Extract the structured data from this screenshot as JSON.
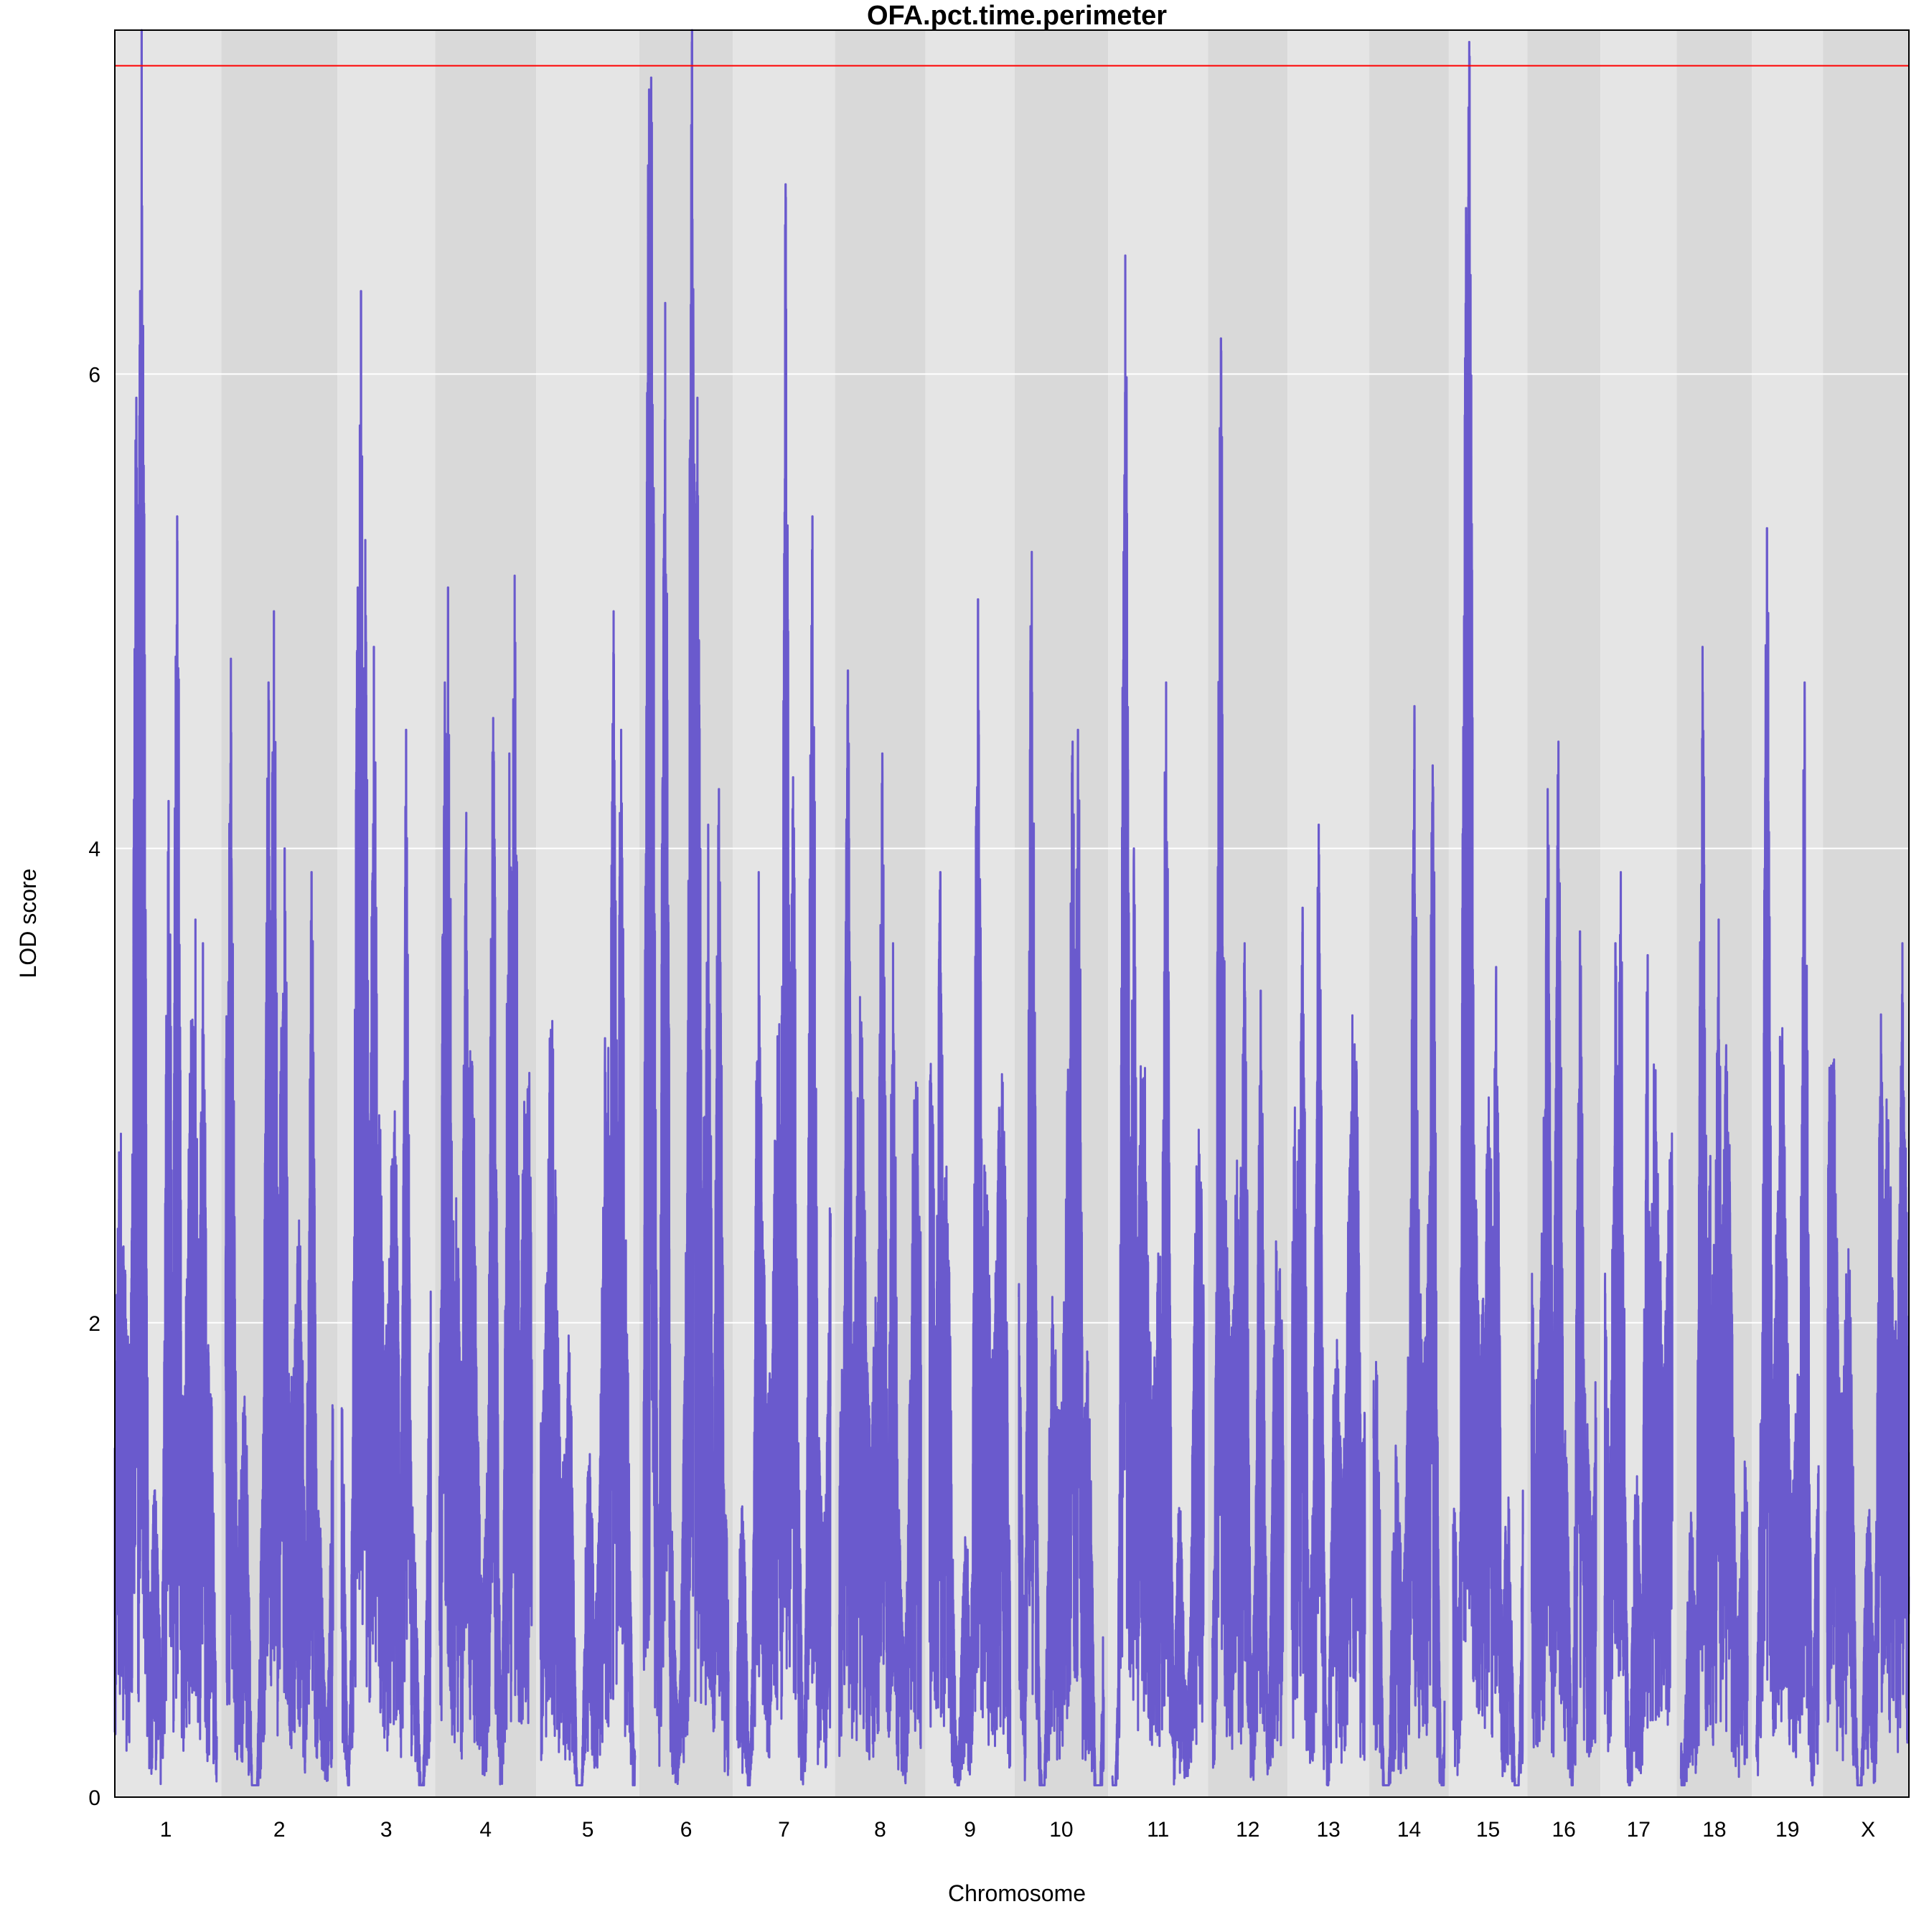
{
  "chart_data": {
    "type": "line",
    "title": "OFA.pct.time.perimeter",
    "xlabel": "Chromosome",
    "ylabel": "LOD score",
    "ylim": [
      0,
      7.45
    ],
    "yticks": [
      0,
      2,
      4,
      6
    ],
    "threshold": 7.3,
    "colors": {
      "line": "#6A5ACD",
      "threshold": "#FF0000",
      "band_light": "#E5E5E5",
      "band_dark": "#D9D9D9",
      "grid": "#FFFFFF"
    },
    "chromosomes": [
      "1",
      "2",
      "3",
      "4",
      "5",
      "6",
      "7",
      "8",
      "9",
      "10",
      "11",
      "12",
      "13",
      "14",
      "15",
      "16",
      "17",
      "18",
      "19",
      "X"
    ],
    "chromosome_lengths_cM": [
      95,
      100,
      83,
      86,
      88,
      79,
      87,
      76,
      75,
      79,
      85,
      66,
      68,
      66,
      65,
      60,
      63,
      62,
      58,
      76
    ],
    "series": [
      {
        "peaks": [
          [
            [
              20,
              5.9
            ],
            [
              25,
              7.45
            ],
            [
              50,
              4.2
            ],
            [
              58,
              5.4
            ],
            [
              75,
              3.7
            ],
            [
              82,
              3.6
            ]
          ],
          [
            [
              5,
              4.8
            ],
            [
              40,
              4.7
            ],
            [
              45,
              5.0
            ],
            [
              55,
              4.0
            ],
            [
              80,
              3.9
            ]
          ],
          [
            [
              15,
              5.1
            ],
            [
              18,
              6.35
            ],
            [
              22,
              5.3
            ],
            [
              30,
              4.85
            ],
            [
              60,
              4.5
            ]
          ],
          [
            [
              5,
              4.7
            ],
            [
              8,
              5.1
            ],
            [
              25,
              4.15
            ],
            [
              50,
              4.55
            ],
            [
              65,
              4.4
            ],
            [
              70,
              5.15
            ]
          ],
          [
            [
              60,
              3.2
            ],
            [
              68,
              5.0
            ],
            [
              75,
              4.5
            ]
          ],
          [
            [
              5,
              7.2
            ],
            [
              7,
              7.25
            ],
            [
              20,
              6.3
            ],
            [
              45,
              7.45
            ],
            [
              50,
              5.9
            ],
            [
              60,
              4.1
            ],
            [
              70,
              4.25
            ]
          ],
          [
            [
              20,
              3.9
            ],
            [
              45,
              6.8
            ],
            [
              52,
              4.3
            ],
            [
              70,
              5.4
            ]
          ],
          [
            [
              8,
              4.75
            ],
            [
              40,
              4.4
            ],
            [
              50,
              3.6
            ]
          ],
          [
            [
              10,
              3.9
            ],
            [
              45,
              5.05
            ]
          ],
          [
            [
              12,
              5.25
            ],
            [
              50,
              4.45
            ],
            [
              55,
              4.5
            ]
          ],
          [
            [
              12,
              6.5
            ],
            [
              20,
              4.0
            ],
            [
              50,
              4.7
            ]
          ],
          [
            [
              8,
              6.15
            ],
            [
              30,
              3.6
            ],
            [
              45,
              3.4
            ]
          ],
          [
            [
              10,
              3.75
            ],
            [
              25,
              4.1
            ],
            [
              60,
              3.1
            ]
          ],
          [
            [
              38,
              4.6
            ],
            [
              55,
              4.35
            ]
          ],
          [
            [
              12,
              6.7
            ],
            [
              15,
              7.4
            ],
            [
              40,
              3.5
            ]
          ],
          [
            [
              15,
              4.25
            ],
            [
              25,
              4.45
            ],
            [
              45,
              3.65
            ]
          ],
          [
            [
              10,
              3.6
            ],
            [
              15,
              3.9
            ],
            [
              40,
              3.55
            ]
          ],
          [
            [
              20,
              4.85
            ],
            [
              35,
              3.7
            ]
          ],
          [
            [
              10,
              5.35
            ],
            [
              45,
              4.7
            ]
          ],
          [
            [
              50,
              3.3
            ],
            [
              70,
              3.6
            ]
          ]
        ]
      }
    ]
  }
}
